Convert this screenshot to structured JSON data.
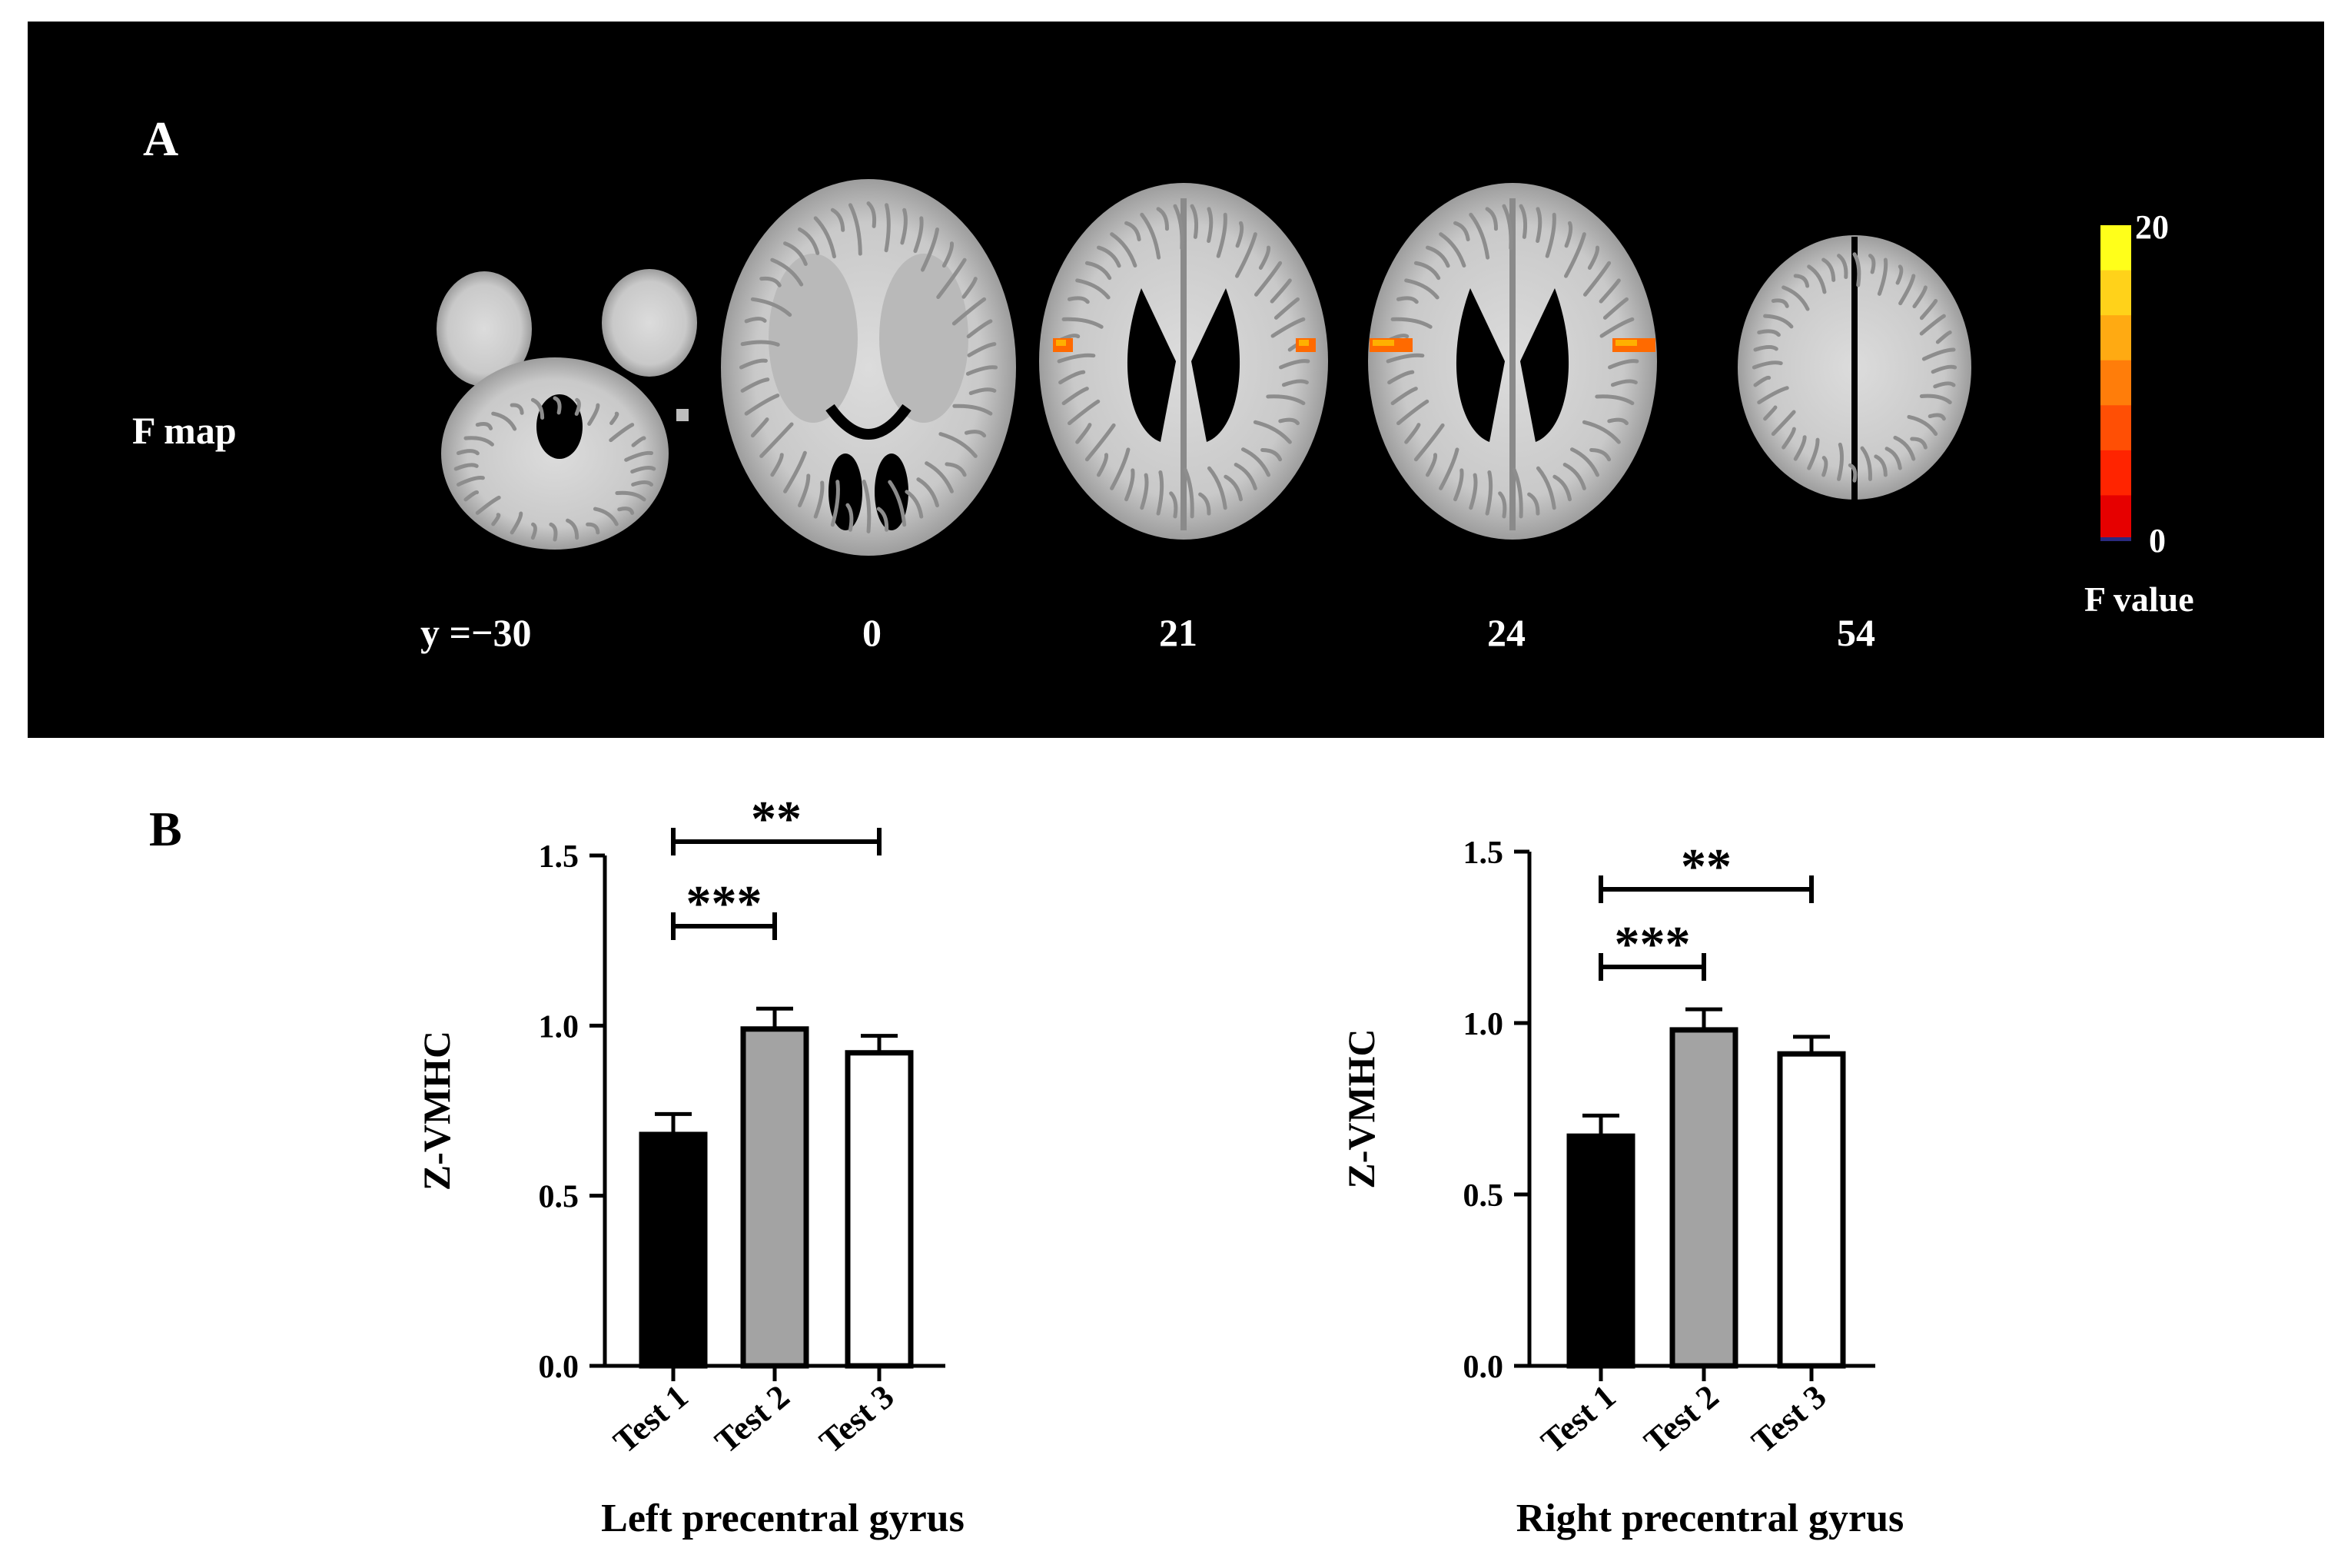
{
  "panel_a": {
    "label": "A",
    "row_label": "F map",
    "slices": [
      {
        "label": "y =−30",
        "view": "cerebellum",
        "activation": false
      },
      {
        "label": "0",
        "view": "basal",
        "activation": false
      },
      {
        "label": "21",
        "view": "ventricular",
        "activation": true
      },
      {
        "label": "24",
        "view": "ventricular",
        "activation": true
      },
      {
        "label": "54",
        "view": "superior",
        "activation": false
      }
    ],
    "colorbar": {
      "max_label": "20",
      "min_label": "0",
      "title": "F value",
      "colors": [
        "#ffff1a",
        "#ffd21a",
        "#ffaa12",
        "#ff7d0a",
        "#ff4f05",
        "#ff2400",
        "#e60000"
      ]
    }
  },
  "panel_b": {
    "label": "B",
    "colors": {
      "test1": "#000000",
      "test2": "#a3a3a3",
      "test3": "#ffffff"
    }
  },
  "chart_data": [
    {
      "type": "bar",
      "categories": [
        "Test 1",
        "Test 2",
        "Test 3"
      ],
      "values": [
        0.68,
        0.99,
        0.92
      ],
      "errors": [
        0.06,
        0.06,
        0.05
      ],
      "xlabel": "Left precentral gyrus",
      "ylabel": "Z-VMHC",
      "ylim": [
        0,
        1.5
      ],
      "yticks": [
        "0.0",
        "0.5",
        "1.0",
        "1.5"
      ],
      "significance": [
        {
          "from": 0,
          "to": 1,
          "label": "***"
        },
        {
          "from": 0,
          "to": 2,
          "label": "**"
        }
      ]
    },
    {
      "type": "bar",
      "categories": [
        "Test 1",
        "Test 2",
        "Test 3"
      ],
      "values": [
        0.67,
        0.98,
        0.91
      ],
      "errors": [
        0.06,
        0.06,
        0.05
      ],
      "xlabel": "Right precentral gyrus",
      "ylabel": "Z-VMHC",
      "ylim": [
        0,
        1.5
      ],
      "yticks": [
        "0.0",
        "0.5",
        "1.0",
        "1.5"
      ],
      "significance": [
        {
          "from": 0,
          "to": 1,
          "label": "***"
        },
        {
          "from": 0,
          "to": 2,
          "label": "**"
        }
      ]
    }
  ]
}
